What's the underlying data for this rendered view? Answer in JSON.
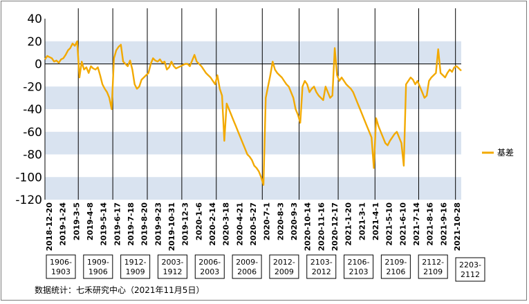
{
  "chart_data": {
    "type": "line",
    "series": [
      {
        "name": "基差",
        "color": "#F2A900",
        "values": [
          4,
          7,
          6,
          5,
          2,
          3,
          1,
          4,
          5,
          8,
          12,
          14,
          18,
          16,
          20,
          -12,
          2,
          -5,
          -3,
          -8,
          -2,
          -4,
          -5,
          -3,
          -10,
          -18,
          -22,
          -25,
          -30,
          -40,
          5,
          12,
          15,
          17,
          2,
          0,
          -2,
          3,
          -5,
          -18,
          -22,
          -20,
          -14,
          -12,
          -10,
          -8,
          0,
          5,
          3,
          2,
          4,
          1,
          2,
          -5,
          -3,
          2,
          -2,
          -4,
          -3,
          -2,
          -1,
          0,
          0,
          -2,
          3,
          8,
          2,
          0,
          -2,
          -5,
          -8,
          -10,
          -12,
          -15,
          -18,
          -10,
          -22,
          -28,
          -68,
          -35,
          -40,
          -45,
          -50,
          -55,
          -60,
          -65,
          -70,
          -75,
          -80,
          -82,
          -85,
          -90,
          -92,
          -95,
          -100,
          -107,
          -30,
          -20,
          -10,
          2,
          -5,
          -8,
          -10,
          -12,
          -15,
          -18,
          -20,
          -25,
          -30,
          -40,
          -45,
          -52,
          -20,
          -15,
          -18,
          -25,
          -22,
          -20,
          -25,
          -28,
          -30,
          -32,
          -20,
          -25,
          -30,
          -28,
          14,
          -10,
          -15,
          -12,
          -15,
          -18,
          -20,
          -22,
          -25,
          -30,
          -35,
          -40,
          -45,
          -50,
          -55,
          -60,
          -65,
          -92,
          -48,
          -55,
          -60,
          -65,
          -70,
          -72,
          -68,
          -65,
          -62,
          -60,
          -65,
          -70,
          -90,
          -18,
          -15,
          -12,
          -14,
          -18,
          -15,
          -20,
          -25,
          -30,
          -28,
          -15,
          -12,
          -10,
          -8,
          13,
          -8,
          -10,
          -12,
          -8,
          -5,
          -7,
          -3,
          -2,
          -4,
          -6
        ]
      }
    ],
    "x_tick_labels": [
      "2018-12-20",
      "2019-1-24",
      "2019-3-5",
      "2019-4-8",
      "2019-5-14",
      "2019-6-17",
      "2019-7-18",
      "2019-8-20",
      "2019-9-23",
      "2019-10-31",
      "2019-12-3",
      "2020-1-6",
      "2020-2-14",
      "2020-3-18",
      "2020-4-21",
      "2020-5-27",
      "2020-7-1",
      "2020-8-3",
      "2020-9-3",
      "2020-10-14",
      "2020-11-16",
      "2020-12-17",
      "2021-1-20",
      "2021-3-1",
      "2021-4-1",
      "2021-5-10",
      "2021-6-10",
      "2021-7-14",
      "2021-8-16",
      "2021-9-16",
      "2021-10-28"
    ],
    "y_ticks": [
      40,
      20,
      0,
      -20,
      -40,
      -60,
      -80,
      -100,
      -120
    ],
    "ylim": [
      -120,
      40
    ],
    "bands": [
      [
        0,
        20
      ],
      [
        -40,
        -20
      ],
      [
        -80,
        -60
      ],
      [
        -120,
        -100
      ]
    ],
    "vertical_lines_after_point": [
      14,
      29,
      44,
      59,
      74,
      94,
      110,
      127,
      143,
      162,
      178
    ],
    "contract_boxes": [
      "1906-1903",
      "1909-1906",
      "1912-1909",
      "2003-1912",
      "2006-2003",
      "2009-2006",
      "2012-2009",
      "2103-2012",
      "2106-2103",
      "2109-2106",
      "2112-2109",
      "2203-2112"
    ],
    "legend_position": "right",
    "line_color": "#F2A900",
    "band_color": "#D9E3F0"
  },
  "source": "数据统计：七禾研究中心（2021年11月5日）"
}
